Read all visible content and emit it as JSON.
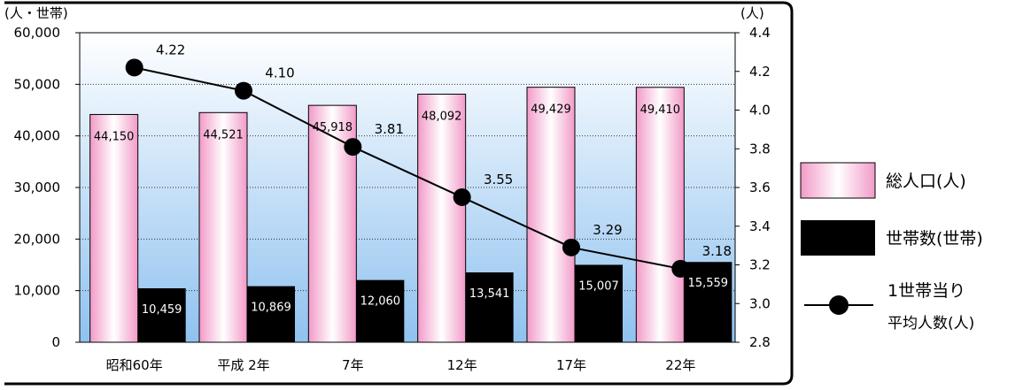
{
  "chart_data": {
    "type": "bar",
    "categories": [
      "昭和60年",
      "平成 2年",
      "7年",
      "12年",
      "17年",
      "22年"
    ],
    "series": [
      {
        "name": "総人口(人)",
        "kind": "bar",
        "axis": "left",
        "values": [
          44150,
          44521,
          45918,
          48092,
          49429,
          49410
        ],
        "labels": [
          "44,150",
          "44,521",
          "45,918",
          "48,092",
          "49,429",
          "49,410"
        ]
      },
      {
        "name": "世帯数(世帯)",
        "kind": "bar",
        "axis": "left",
        "values": [
          10459,
          10869,
          12060,
          13541,
          15007,
          15559
        ],
        "labels": [
          "10,459",
          "10,869",
          "12,060",
          "13,541",
          "15,007",
          "15,559"
        ]
      },
      {
        "name": "1世帯当り",
        "name_line2": "平均人数(人)",
        "kind": "line",
        "axis": "right",
        "values": [
          4.22,
          4.1,
          3.81,
          3.55,
          3.29,
          3.18
        ],
        "labels": [
          "4.22",
          "4.10",
          "3.81",
          "3.55",
          "3.29",
          "3.18"
        ]
      }
    ],
    "left_axis": {
      "unit": "(人・世帯)",
      "ylim": [
        0,
        60000
      ],
      "ticks": [
        0,
        10000,
        20000,
        30000,
        40000,
        50000,
        60000
      ],
      "tick_labels": [
        "0",
        "10,000",
        "20,000",
        "30,000",
        "40,000",
        "50,000",
        "60,000"
      ]
    },
    "right_axis": {
      "unit": "(人)",
      "ylim": [
        2.8,
        4.4
      ],
      "ticks": [
        2.8,
        3.0,
        3.2,
        3.4,
        3.6,
        3.8,
        4.0,
        4.2,
        4.4
      ],
      "tick_labels": [
        "2.8",
        "3.0",
        "3.2",
        "3.4",
        "3.6",
        "3.8",
        "4.0",
        "4.2",
        "4.4"
      ]
    },
    "grid": true,
    "legend_position": "right",
    "colors": {
      "population": "#f7b3d6",
      "households": "#000000",
      "line": "#000000",
      "plot_top": "#ffffff",
      "plot_bottom": "#8fc2f0"
    }
  }
}
